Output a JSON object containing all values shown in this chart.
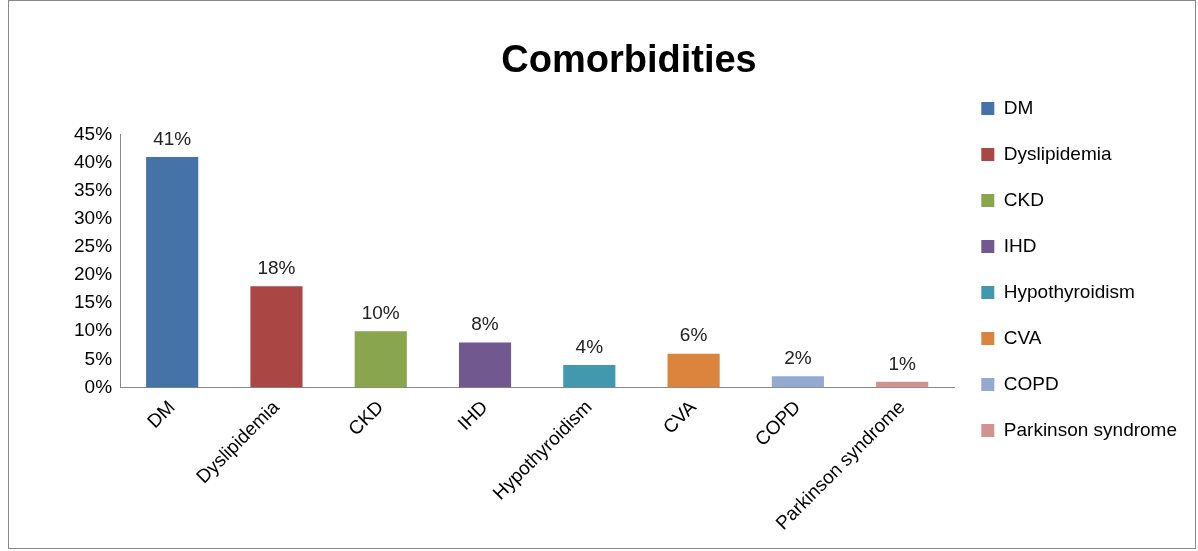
{
  "chart_data": {
    "type": "bar",
    "title": "Comorbidities",
    "categories": [
      "DM",
      "Dyslipidemia",
      "CKD",
      "IHD",
      "Hypothyroidism",
      "CVA",
      "COPD",
      "Parkinson syndrome"
    ],
    "stacked": true,
    "series": [
      {
        "name": "DM",
        "color": "#4572a7",
        "values": [
          41,
          null,
          null,
          null,
          null,
          null,
          null,
          null
        ],
        "value_labels": [
          "41%",
          null,
          null,
          null,
          null,
          null,
          null,
          null
        ]
      },
      {
        "name": "Dyslipidemia",
        "color": "#aa4643",
        "values": [
          null,
          18,
          null,
          null,
          null,
          null,
          null,
          null
        ],
        "value_labels": [
          null,
          "18%",
          null,
          null,
          null,
          null,
          null,
          null
        ]
      },
      {
        "name": "CKD",
        "color": "#89a54e",
        "values": [
          null,
          null,
          10,
          null,
          null,
          null,
          null,
          null
        ],
        "value_labels": [
          null,
          null,
          "10%",
          null,
          null,
          null,
          null,
          null
        ]
      },
      {
        "name": "IHD",
        "color": "#71588f",
        "values": [
          null,
          null,
          null,
          8,
          null,
          null,
          null,
          null
        ],
        "value_labels": [
          null,
          null,
          null,
          "8%",
          null,
          null,
          null,
          null
        ]
      },
      {
        "name": "Hypothyroidism",
        "color": "#4198af",
        "values": [
          null,
          null,
          null,
          null,
          4,
          null,
          null,
          null
        ],
        "value_labels": [
          null,
          null,
          null,
          null,
          "4%",
          null,
          null,
          null
        ]
      },
      {
        "name": "CVA",
        "color": "#db843d",
        "values": [
          null,
          null,
          null,
          null,
          null,
          6,
          null,
          null
        ],
        "value_labels": [
          null,
          null,
          null,
          null,
          null,
          "6%",
          null,
          null
        ]
      },
      {
        "name": "COPD",
        "color": "#93a9cf",
        "values": [
          null,
          null,
          null,
          null,
          null,
          null,
          2,
          null
        ],
        "value_labels": [
          null,
          null,
          null,
          null,
          null,
          null,
          "2%",
          null
        ]
      },
      {
        "name": "Parkinson syndrome",
        "color": "#d19392",
        "values": [
          null,
          null,
          null,
          null,
          null,
          null,
          null,
          1
        ],
        "value_labels": [
          null,
          null,
          null,
          null,
          null,
          null,
          null,
          "1%"
        ]
      }
    ],
    "ylim": [
      0,
      45
    ],
    "yticks": [
      {
        "value": 0,
        "label": "0%"
      },
      {
        "value": 5,
        "label": "5%"
      },
      {
        "value": 10,
        "label": "10%"
      },
      {
        "value": 15,
        "label": "15%"
      },
      {
        "value": 20,
        "label": "20%"
      },
      {
        "value": 25,
        "label": "25%"
      },
      {
        "value": 30,
        "label": "30%"
      },
      {
        "value": 35,
        "label": "35%"
      },
      {
        "value": 40,
        "label": "40%"
      },
      {
        "value": 45,
        "label": "45%"
      }
    ],
    "grid": false,
    "legend": "right"
  }
}
